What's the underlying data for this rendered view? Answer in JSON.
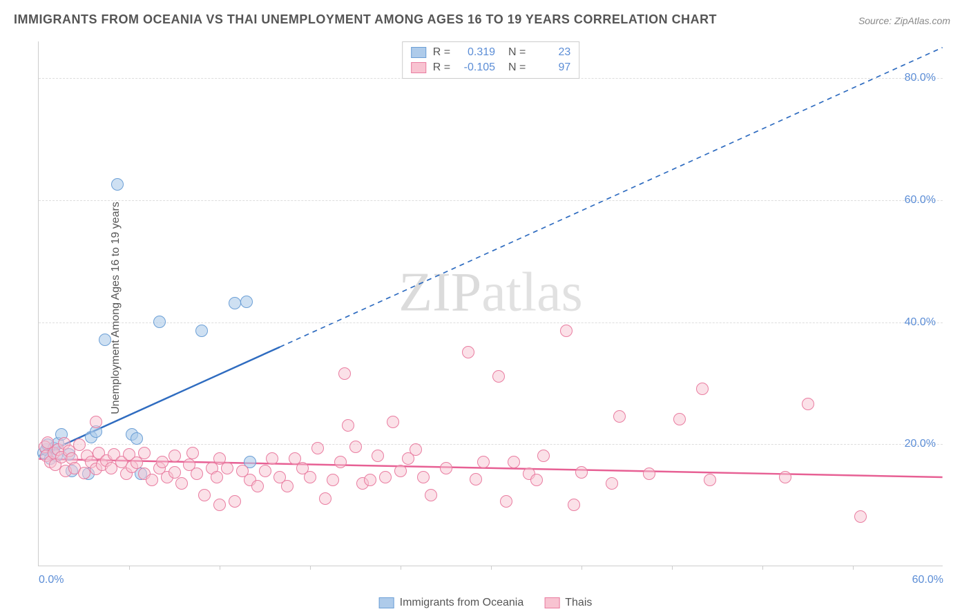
{
  "title": "IMMIGRANTS FROM OCEANIA VS THAI UNEMPLOYMENT AMONG AGES 16 TO 19 YEARS CORRELATION CHART",
  "source": "Source: ZipAtlas.com",
  "ylabel": "Unemployment Among Ages 16 to 19 years",
  "watermark_a": "ZIP",
  "watermark_b": "atlas",
  "chart": {
    "type": "scatter",
    "xlim": [
      0,
      60
    ],
    "ylim": [
      0,
      86
    ],
    "ytick_step": 20,
    "ytick_labels": [
      "20.0%",
      "40.0%",
      "60.0%",
      "80.0%"
    ],
    "xtick_positions": [
      0,
      60
    ],
    "xtick_labels": [
      "0.0%",
      "60.0%"
    ],
    "xtick_minor_positions": [
      6,
      12,
      18,
      24,
      30,
      36,
      42,
      48,
      54
    ],
    "background_color": "#ffffff",
    "grid_color": "#dddddd",
    "axis_color": "#cccccc",
    "tick_label_color": "#5b8dd6",
    "point_radius": 9,
    "series": [
      {
        "name": "Immigrants from Oceania",
        "color_fill": "rgba(174,203,234,0.6)",
        "color_stroke": "#6b9fd6",
        "R": "0.319",
        "N": "23",
        "trend": {
          "x1": 0,
          "y1": 18,
          "x2": 60,
          "y2": 85,
          "solid_until_x": 16,
          "color": "#2f6cc0",
          "width": 2.5
        },
        "points": [
          [
            0.3,
            18.5
          ],
          [
            0.5,
            19.0
          ],
          [
            0.6,
            19.8
          ],
          [
            0.8,
            17.5
          ],
          [
            1.0,
            19.2
          ],
          [
            1.2,
            18.0
          ],
          [
            1.3,
            20.0
          ],
          [
            1.5,
            21.5
          ],
          [
            2.0,
            18.2
          ],
          [
            2.2,
            15.5
          ],
          [
            3.3,
            15.0
          ],
          [
            3.5,
            21.0
          ],
          [
            3.8,
            22.0
          ],
          [
            4.4,
            37.0
          ],
          [
            5.2,
            62.5
          ],
          [
            6.2,
            21.5
          ],
          [
            6.5,
            20.8
          ],
          [
            6.8,
            15.0
          ],
          [
            8.0,
            40.0
          ],
          [
            10.8,
            38.5
          ],
          [
            13.0,
            43.0
          ],
          [
            13.8,
            43.2
          ],
          [
            14.0,
            17.0
          ]
        ]
      },
      {
        "name": "Thais",
        "color_fill": "rgba(248,195,209,0.5)",
        "color_stroke": "#e97ca0",
        "R": "-0.105",
        "N": "97",
        "trend": {
          "x1": 0,
          "y1": 17.5,
          "x2": 60,
          "y2": 14.5,
          "solid_until_x": 60,
          "color": "#e76094",
          "width": 2.5
        },
        "points": [
          [
            0.4,
            19.5
          ],
          [
            0.5,
            18.0
          ],
          [
            0.6,
            20.2
          ],
          [
            0.8,
            17.0
          ],
          [
            1.0,
            18.5
          ],
          [
            1.1,
            16.5
          ],
          [
            1.3,
            19.0
          ],
          [
            1.5,
            17.8
          ],
          [
            1.7,
            20.0
          ],
          [
            1.8,
            15.5
          ],
          [
            2.0,
            18.8
          ],
          [
            2.2,
            17.5
          ],
          [
            2.4,
            16.0
          ],
          [
            2.7,
            19.8
          ],
          [
            3.0,
            15.2
          ],
          [
            3.2,
            18.0
          ],
          [
            3.5,
            17.0
          ],
          [
            3.8,
            15.8
          ],
          [
            3.8,
            23.5
          ],
          [
            4.0,
            18.5
          ],
          [
            4.2,
            16.5
          ],
          [
            4.5,
            17.2
          ],
          [
            4.8,
            16.0
          ],
          [
            5.0,
            18.2
          ],
          [
            5.5,
            17.0
          ],
          [
            5.8,
            15.0
          ],
          [
            6.0,
            18.2
          ],
          [
            6.2,
            16.2
          ],
          [
            6.5,
            16.9
          ],
          [
            7.0,
            15.0
          ],
          [
            7.0,
            18.5
          ],
          [
            7.5,
            14.0
          ],
          [
            8.0,
            16.0
          ],
          [
            8.2,
            17.0
          ],
          [
            8.5,
            14.5
          ],
          [
            9.0,
            15.3
          ],
          [
            9.0,
            18.0
          ],
          [
            9.5,
            13.5
          ],
          [
            10.0,
            16.5
          ],
          [
            10.2,
            18.5
          ],
          [
            10.5,
            15.0
          ],
          [
            11.0,
            11.5
          ],
          [
            11.5,
            16.0
          ],
          [
            11.8,
            14.5
          ],
          [
            12.0,
            10.0
          ],
          [
            12.0,
            17.5
          ],
          [
            12.5,
            16.0
          ],
          [
            13.0,
            10.5
          ],
          [
            13.5,
            15.5
          ],
          [
            14.0,
            14.0
          ],
          [
            14.5,
            13.0
          ],
          [
            15.0,
            15.5
          ],
          [
            15.5,
            17.5
          ],
          [
            16.0,
            14.5
          ],
          [
            16.5,
            13.0
          ],
          [
            17.0,
            17.5
          ],
          [
            17.5,
            16.0
          ],
          [
            18.0,
            14.5
          ],
          [
            18.5,
            19.2
          ],
          [
            19.0,
            11.0
          ],
          [
            19.5,
            14.0
          ],
          [
            20.0,
            17.0
          ],
          [
            20.3,
            31.5
          ],
          [
            20.5,
            23.0
          ],
          [
            21.0,
            19.5
          ],
          [
            21.5,
            13.5
          ],
          [
            22.0,
            14.0
          ],
          [
            22.5,
            18.0
          ],
          [
            23.0,
            14.5
          ],
          [
            23.5,
            23.5
          ],
          [
            24.0,
            15.5
          ],
          [
            24.5,
            17.5
          ],
          [
            25.0,
            19.0
          ],
          [
            25.5,
            14.5
          ],
          [
            26.0,
            11.5
          ],
          [
            27.0,
            16.0
          ],
          [
            28.5,
            35.0
          ],
          [
            29.0,
            14.2
          ],
          [
            29.5,
            17.0
          ],
          [
            30.5,
            31.0
          ],
          [
            31.0,
            10.5
          ],
          [
            31.5,
            17.0
          ],
          [
            32.5,
            15.0
          ],
          [
            33.0,
            14.0
          ],
          [
            33.5,
            18.0
          ],
          [
            35.0,
            38.5
          ],
          [
            35.5,
            10.0
          ],
          [
            36.0,
            15.3
          ],
          [
            38.0,
            13.5
          ],
          [
            38.5,
            24.5
          ],
          [
            40.5,
            15.0
          ],
          [
            42.5,
            24.0
          ],
          [
            44.0,
            29.0
          ],
          [
            44.5,
            14.0
          ],
          [
            49.5,
            14.5
          ],
          [
            51.0,
            26.5
          ],
          [
            54.5,
            8.0
          ]
        ]
      }
    ]
  },
  "legend_bottom": [
    {
      "label": "Immigrants from Oceania",
      "fill": "#aecbea",
      "stroke": "#6b9fd6"
    },
    {
      "label": "Thais",
      "fill": "#f8c3d1",
      "stroke": "#e97ca0"
    }
  ]
}
